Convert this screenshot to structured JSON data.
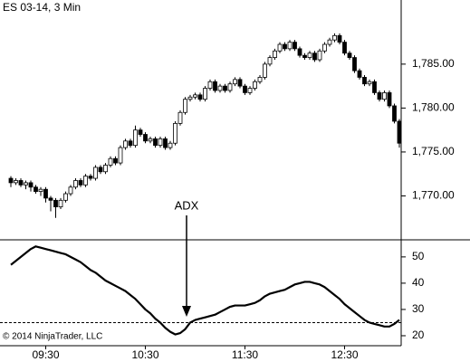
{
  "chart_data": [
    {
      "type": "candlestick",
      "title": "ES 03-14, 3 Min",
      "open": [
        1772.0,
        1771.5,
        1771.75,
        1771.25,
        1771.5,
        1771.0,
        1770.5,
        1770.75,
        1769.75,
        1769.5,
        1768.75,
        1769.5,
        1770.25,
        1771.0,
        1771.75,
        1771.25,
        1772.25,
        1772.0,
        1773.25,
        1772.75,
        1773.5,
        1774.25,
        1773.75,
        1775.5,
        1776.25,
        1775.75,
        1777.5,
        1777.0,
        1776.25,
        1776.5,
        1775.75,
        1776.5,
        1775.5,
        1776.0,
        1778.25,
        1779.5,
        1781.0,
        1781.25,
        1781.5,
        1781.0,
        1782.25,
        1783.0,
        1782.0,
        1782.5,
        1782.0,
        1782.75,
        1783.25,
        1782.5,
        1781.75,
        1782.25,
        1783.0,
        1783.5,
        1785.0,
        1785.75,
        1786.5,
        1787.25,
        1786.75,
        1787.5,
        1786.75,
        1786.0,
        1785.75,
        1786.25,
        1785.5,
        1786.5,
        1787.25,
        1787.75,
        1788.25,
        1787.5,
        1786.25,
        1785.75,
        1784.25,
        1783.5,
        1782.75,
        1783.0,
        1781.75,
        1781.0,
        1781.75,
        1780.25,
        1778.5
      ],
      "high": [
        1772.25,
        1772.0,
        1772.0,
        1771.75,
        1771.75,
        1771.25,
        1771.0,
        1771.0,
        1770.0,
        1769.75,
        1769.75,
        1770.5,
        1771.25,
        1772.0,
        1772.0,
        1772.5,
        1772.5,
        1773.5,
        1773.5,
        1773.75,
        1774.5,
        1774.5,
        1775.75,
        1776.5,
        1776.5,
        1778.0,
        1777.75,
        1777.25,
        1776.75,
        1776.75,
        1776.75,
        1776.75,
        1776.25,
        1778.5,
        1779.75,
        1781.25,
        1781.5,
        1781.75,
        1781.75,
        1782.5,
        1783.25,
        1783.25,
        1782.75,
        1782.75,
        1783.0,
        1783.5,
        1783.5,
        1782.75,
        1782.5,
        1783.25,
        1783.75,
        1785.25,
        1786.0,
        1786.75,
        1787.5,
        1787.5,
        1787.75,
        1787.75,
        1787.0,
        1786.25,
        1786.5,
        1786.5,
        1786.75,
        1787.5,
        1788.0,
        1788.5,
        1788.5,
        1787.75,
        1786.5,
        1786.0,
        1784.5,
        1783.75,
        1783.25,
        1783.25,
        1782.0,
        1782.0,
        1782.0,
        1780.5,
        1778.75
      ],
      "low": [
        1771.0,
        1771.25,
        1771.0,
        1770.75,
        1770.5,
        1770.25,
        1770.0,
        1769.25,
        1768.25,
        1767.5,
        1768.5,
        1769.25,
        1770.0,
        1770.75,
        1771.0,
        1771.0,
        1771.75,
        1771.75,
        1772.5,
        1772.5,
        1773.25,
        1773.5,
        1773.5,
        1775.25,
        1775.5,
        1775.5,
        1776.75,
        1776.0,
        1776.0,
        1775.5,
        1775.5,
        1775.25,
        1775.25,
        1775.75,
        1778.0,
        1779.25,
        1780.75,
        1781.0,
        1780.75,
        1780.75,
        1782.0,
        1781.75,
        1781.75,
        1781.75,
        1781.75,
        1782.5,
        1782.25,
        1781.5,
        1781.5,
        1782.0,
        1782.75,
        1783.25,
        1784.75,
        1785.5,
        1786.25,
        1786.5,
        1786.5,
        1786.5,
        1785.75,
        1785.5,
        1785.5,
        1785.25,
        1785.25,
        1786.25,
        1787.0,
        1787.5,
        1787.25,
        1786.0,
        1785.5,
        1784.0,
        1783.25,
        1782.5,
        1782.5,
        1781.5,
        1780.75,
        1780.75,
        1780.0,
        1778.25,
        1775.5
      ],
      "close": [
        1771.5,
        1771.75,
        1771.25,
        1771.5,
        1771.0,
        1770.5,
        1770.75,
        1769.75,
        1769.5,
        1768.75,
        1769.5,
        1770.25,
        1771.0,
        1771.75,
        1771.25,
        1772.25,
        1772.0,
        1773.25,
        1772.75,
        1773.5,
        1774.25,
        1773.75,
        1775.5,
        1776.25,
        1775.75,
        1777.5,
        1777.0,
        1776.25,
        1776.5,
        1775.75,
        1776.5,
        1775.5,
        1776.0,
        1778.25,
        1779.5,
        1781.0,
        1781.25,
        1781.5,
        1781.0,
        1782.25,
        1783.0,
        1782.0,
        1782.5,
        1782.0,
        1782.75,
        1783.25,
        1782.5,
        1781.75,
        1782.25,
        1783.0,
        1783.5,
        1785.0,
        1785.75,
        1786.5,
        1787.25,
        1786.75,
        1787.5,
        1786.75,
        1786.0,
        1785.75,
        1786.25,
        1785.5,
        1786.5,
        1787.25,
        1787.75,
        1788.25,
        1787.5,
        1786.25,
        1785.75,
        1784.25,
        1783.5,
        1782.75,
        1783.0,
        1781.75,
        1781.0,
        1781.75,
        1780.25,
        1778.5,
        1776.0
      ],
      "up_color": "#ffffff",
      "down_color": "#000000",
      "ylim": [
        1765,
        1792.3
      ],
      "yticks": [
        {
          "value": 1770,
          "label": "1,770.00"
        },
        {
          "value": 1775,
          "label": "1,775.00"
        },
        {
          "value": 1780,
          "label": "1,780.00"
        },
        {
          "value": 1785,
          "label": "1,785.00"
        }
      ],
      "annotation": "ADX"
    },
    {
      "type": "line",
      "categories": [
        null,
        null,
        null,
        null,
        null,
        null,
        null,
        "09:30",
        null,
        null,
        null,
        null,
        null,
        null,
        null,
        null,
        null,
        null,
        null,
        null,
        null,
        null,
        null,
        null,
        null,
        null,
        null,
        "10:30",
        null,
        null,
        null,
        null,
        null,
        null,
        null,
        null,
        null,
        null,
        null,
        null,
        null,
        null,
        null,
        null,
        null,
        null,
        null,
        "11:30",
        null,
        null,
        null,
        null,
        null,
        null,
        null,
        null,
        null,
        null,
        null,
        null,
        null,
        null,
        null,
        null,
        null,
        null,
        null,
        "12:30",
        null,
        null,
        null,
        null,
        null,
        null,
        null,
        null,
        null,
        null,
        null
      ],
      "values": [
        47,
        48.5,
        50,
        51.5,
        53,
        54,
        53.5,
        53,
        52.5,
        52,
        51.5,
        51,
        50,
        49,
        48,
        46.5,
        45,
        44,
        42.5,
        41,
        40,
        39,
        38,
        37,
        35.5,
        34,
        32,
        30,
        28.5,
        26.5,
        25,
        23,
        21.5,
        20.5,
        21,
        22.5,
        25,
        26,
        26.5,
        27,
        27.5,
        28,
        29,
        30,
        31,
        31.5,
        31.5,
        31.5,
        32,
        32.5,
        33.5,
        35,
        36,
        36.5,
        37,
        37.5,
        38.5,
        39.5,
        40,
        40.5,
        40.5,
        40,
        39.5,
        38.5,
        37,
        35.5,
        34,
        32,
        30.5,
        29,
        27.5,
        26,
        25,
        24.5,
        24,
        23.5,
        23.5,
        24.5,
        26
      ],
      "color": "#000000",
      "level": 25,
      "ylim": [
        16.2,
        56.5
      ],
      "yticks": [
        20,
        30,
        40,
        50
      ],
      "footer": "© 2014 NinjaTrader, LLC"
    }
  ]
}
